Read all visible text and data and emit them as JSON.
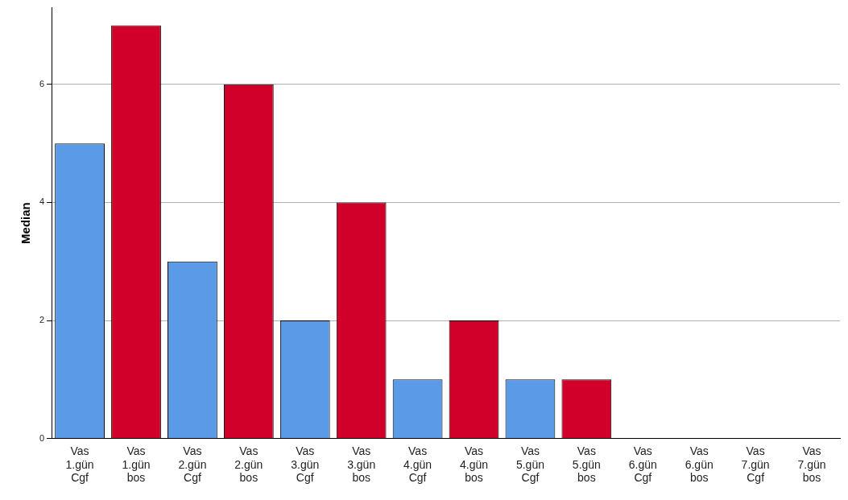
{
  "chart_data": {
    "type": "bar",
    "ylabel": "Median",
    "categories": [
      "Vas 1.gün Cgf",
      "Vas 1.gün bos",
      "Vas 2.gün Cgf",
      "Vas 2.gün bos",
      "Vas 3.gün Cgf",
      "Vas 3.gün bos",
      "Vas 4.gün Cgf",
      "Vas 4.gün bos",
      "Vas 5.gün Cgf",
      "Vas 5.gün bos",
      "Vas 6.gün Cgf",
      "Vas 6.gün bos",
      "Vas 7.gün Cgf",
      "Vas 7.gün bos"
    ],
    "values": [
      5,
      7,
      3,
      6,
      2,
      4,
      1,
      2,
      1,
      1,
      0,
      0,
      0,
      0
    ],
    "colors": [
      "#5a9ae6",
      "#d1002a",
      "#5a9ae6",
      "#d1002a",
      "#5a9ae6",
      "#d1002a",
      "#5a9ae6",
      "#d1002a",
      "#5a9ae6",
      "#d1002a",
      "#5a9ae6",
      "#d1002a",
      "#5a9ae6",
      "#d1002a"
    ],
    "ylim": [
      0,
      7.3
    ],
    "yticks": [
      0,
      2,
      4,
      6
    ],
    "grid": "y",
    "legend": false
  }
}
